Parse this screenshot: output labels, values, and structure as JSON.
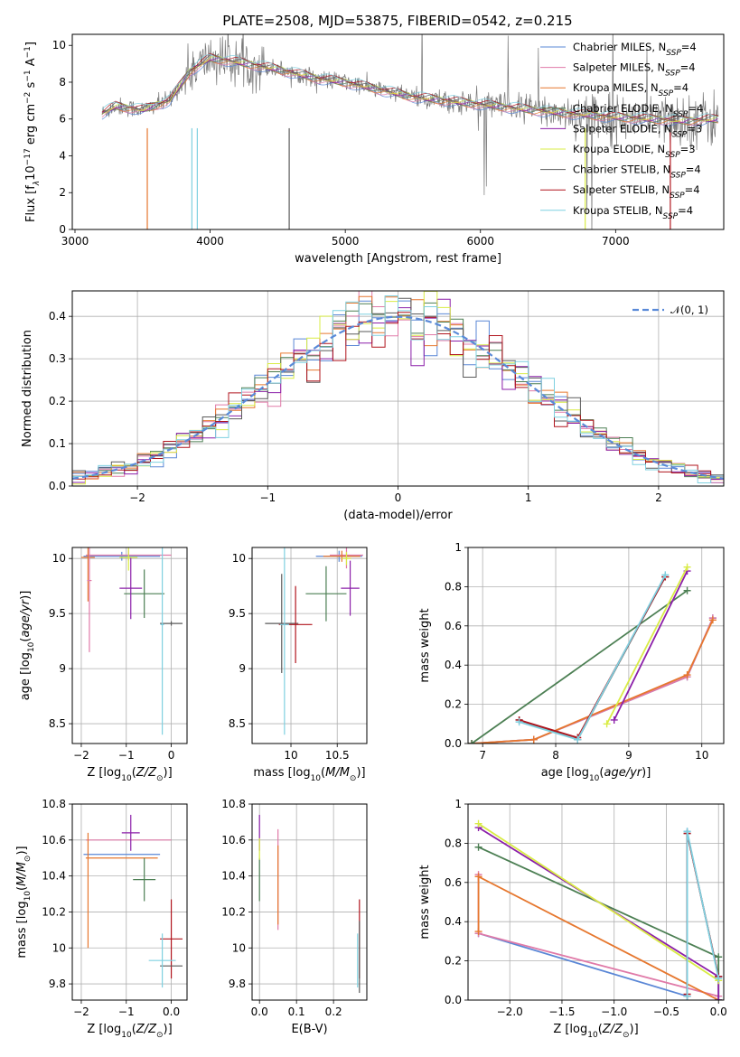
{
  "title": "PLATE=2508, MJD=53875, FIBERID=0542, z=0.215",
  "colors": {
    "Chabrier MILES": "#5a87d6",
    "Salpeter MILES": "#e07aa8",
    "Kroupa MILES": "#e6772e",
    "Chabrier ELODIE": "#4c7f53",
    "Salpeter ELODIE": "#8b1fa9",
    "Kroupa ELODIE": "#d9ec45",
    "Chabrier STELIB": "#5a5a5a",
    "Salpeter STELIB": "#b0141d",
    "Kroupa STELIB": "#7fd0e0",
    "normal": "#5a8ad8"
  },
  "legend": [
    {
      "prefix": "Chabrier MILES, N",
      "sub": "SSP",
      "suffix": "=4",
      "color_key": "Chabrier MILES"
    },
    {
      "prefix": "Salpeter MILES, N",
      "sub": "SSP",
      "suffix": "=4",
      "color_key": "Salpeter MILES"
    },
    {
      "prefix": "Kroupa MILES, N",
      "sub": "SSP",
      "suffix": "=4",
      "color_key": "Kroupa MILES"
    },
    {
      "prefix": "Chabrier ELODIE, N",
      "sub": "SSP",
      "suffix": "=4",
      "color_key": "Chabrier ELODIE"
    },
    {
      "prefix": "Salpeter ELODIE, N",
      "sub": "SSP",
      "suffix": "=3",
      "color_key": "Salpeter ELODIE"
    },
    {
      "prefix": "Kroupa ELODIE, N",
      "sub": "SSP",
      "suffix": "=3",
      "color_key": "Kroupa ELODIE"
    },
    {
      "prefix": "Chabrier STELIB, N",
      "sub": "SSP",
      "suffix": "=4",
      "color_key": "Chabrier STELIB"
    },
    {
      "prefix": "Salpeter STELIB, N",
      "sub": "SSP",
      "suffix": "=4",
      "color_key": "Salpeter STELIB"
    },
    {
      "prefix": "Kroupa STELIB, N",
      "sub": "SSP",
      "suffix": "=4",
      "color_key": "Kroupa STELIB"
    }
  ],
  "chart_data": [
    {
      "id": "spectrum",
      "type": "line",
      "xlabel": "wavelength [Angstrom, rest frame]",
      "ylabel_parts": [
        "Flux [f",
        "λ",
        "10",
        "−17",
        " erg cm",
        "−2",
        " s",
        "−1",
        " A",
        "−1",
        "]"
      ],
      "xlim": [
        2980,
        7800
      ],
      "ylim": [
        0,
        10.6
      ],
      "xticks": [
        3000,
        4000,
        5000,
        6000,
        7000
      ],
      "yticks": [
        0,
        2,
        4,
        6,
        8,
        10
      ],
      "continuum": [
        [
          3200,
          6.3
        ],
        [
          3300,
          6.7
        ],
        [
          3500,
          6.5
        ],
        [
          3700,
          7.0
        ],
        [
          3850,
          8.6
        ],
        [
          4000,
          9.3
        ],
        [
          4200,
          9.1
        ],
        [
          4500,
          8.7
        ],
        [
          4800,
          8.2
        ],
        [
          5000,
          8.0
        ],
        [
          5500,
          7.2
        ],
        [
          6000,
          6.8
        ],
        [
          6500,
          6.4
        ],
        [
          7000,
          6.1
        ],
        [
          7500,
          5.9
        ],
        [
          7760,
          6.0
        ]
      ]
    },
    {
      "id": "residuals",
      "type": "histogram",
      "xlabel": "(data-model)/error",
      "ylabel": "Normed distribution",
      "xlim": [
        -2.5,
        2.5
      ],
      "ylim": [
        0,
        0.46
      ],
      "xticks": [
        -2,
        -1,
        0,
        1,
        2
      ],
      "yticks": [
        0.0,
        0.1,
        0.2,
        0.3,
        0.4
      ],
      "legend_label": "𝒩(0, 1)",
      "bin_width": 0.1
    },
    {
      "id": "age_vs_Z",
      "type": "errorbar",
      "xlabel_parts": [
        "Z [log",
        "10",
        "(",
        "Z/Z",
        "⊙",
        ")]"
      ],
      "ylabel_parts": [
        "age  [log",
        "10",
        "(",
        "age/yr",
        ")]"
      ],
      "xlim": [
        -2.2,
        0.35
      ],
      "ylim": [
        8.32,
        10.1
      ],
      "xticks": [
        -2,
        -1,
        0
      ],
      "yticks": [
        8.5,
        9.0,
        9.5,
        10.0
      ],
      "points": [
        {
          "series": "Chabrier MILES",
          "x": -1.1,
          "y": 10.02,
          "xerr": 0.85,
          "yerr": 0.04
        },
        {
          "series": "Salpeter MILES",
          "x": -0.95,
          "y": 10.03,
          "xerr": 0.95,
          "yerr": 0.05
        },
        {
          "series": "Kroupa MILES",
          "x": -1.85,
          "y": 10.01,
          "xerr": 0.15,
          "yerr": 0.4
        },
        {
          "series": "Salpeter MILES",
          "x": -1.82,
          "y": 9.8,
          "xerr": 0.05,
          "yerr": 0.65
        },
        {
          "series": "Chabrier ELODIE",
          "x": -0.6,
          "y": 9.68,
          "xerr": 0.45,
          "yerr": 0.22
        },
        {
          "series": "Salpeter ELODIE",
          "x": -0.9,
          "y": 9.73,
          "xerr": 0.25,
          "yerr": 0.28
        },
        {
          "series": "Kroupa ELODIE",
          "x": -0.95,
          "y": 10.01,
          "xerr": 0.2,
          "yerr": 0.12
        },
        {
          "series": "Chabrier STELIB",
          "x": 0.0,
          "y": 9.41,
          "xerr": 0.25,
          "yerr": 0.02
        },
        {
          "series": "Kroupa STELIB",
          "x": -0.2,
          "y": 9.4,
          "xerr": 0.04,
          "yerr": 1.0
        }
      ]
    },
    {
      "id": "age_vs_mass",
      "type": "errorbar",
      "xlabel_parts": [
        "mass [log",
        "10",
        "(",
        "M/M",
        "⊙",
        ")]"
      ],
      "ylabel": "",
      "xlim": [
        9.58,
        10.82
      ],
      "ylim": [
        8.32,
        10.1
      ],
      "xticks": [
        10.0,
        10.5
      ],
      "yticks": [
        8.5,
        9.0,
        9.5,
        10.0
      ],
      "points": [
        {
          "series": "Chabrier MILES",
          "x": 10.52,
          "y": 10.02,
          "xerr": 0.25,
          "yerr": 0.05
        },
        {
          "series": "Salpeter MILES",
          "x": 10.6,
          "y": 10.03,
          "xerr": 0.18,
          "yerr": 0.12
        },
        {
          "series": "Kroupa MILES",
          "x": 10.55,
          "y": 10.02,
          "xerr": 0.2,
          "yerr": 0.05
        },
        {
          "series": "Chabrier ELODIE",
          "x": 10.38,
          "y": 9.68,
          "xerr": 0.22,
          "yerr": 0.25
        },
        {
          "series": "Salpeter ELODIE",
          "x": 10.64,
          "y": 9.73,
          "xerr": 0.1,
          "yerr": 0.25
        },
        {
          "series": "Kroupa ELODIE",
          "x": 10.6,
          "y": 10.0,
          "xerr": 0.05,
          "yerr": 0.06
        },
        {
          "series": "Chabrier STELIB",
          "x": 9.9,
          "y": 9.41,
          "xerr": 0.18,
          "yerr": 0.45
        },
        {
          "series": "Salpeter STELIB",
          "x": 10.05,
          "y": 9.4,
          "xerr": 0.18,
          "yerr": 0.35
        },
        {
          "series": "Kroupa STELIB",
          "x": 9.93,
          "y": 9.4,
          "xerr": 0.05,
          "yerr": 1.0
        }
      ]
    },
    {
      "id": "weight_vs_age",
      "type": "line",
      "xlabel_parts": [
        "age  [log",
        "10",
        "(",
        "age/yr",
        ")]"
      ],
      "ylabel": "mass weight",
      "xlim": [
        6.8,
        10.3
      ],
      "ylim": [
        0,
        1.0
      ],
      "xticks": [
        7,
        8,
        9,
        10
      ],
      "yticks": [
        0.0,
        0.2,
        0.4,
        0.6,
        0.8,
        1.0
      ],
      "series": [
        {
          "name": "Chabrier MILES",
          "x": [
            6.85,
            7.7,
            9.8,
            10.15
          ],
          "y": [
            0.0,
            0.02,
            0.34,
            0.64
          ]
        },
        {
          "name": "Salpeter MILES",
          "x": [
            6.85,
            7.7,
            9.8,
            10.15
          ],
          "y": [
            0.0,
            0.02,
            0.34,
            0.64
          ]
        },
        {
          "name": "Kroupa MILES",
          "x": [
            6.85,
            7.7,
            9.8,
            10.15
          ],
          "y": [
            0.0,
            0.02,
            0.35,
            0.63
          ]
        },
        {
          "name": "Chabrier ELODIE",
          "x": [
            6.85,
            9.8
          ],
          "y": [
            0.0,
            0.78
          ]
        },
        {
          "name": "Salpeter ELODIE",
          "x": [
            8.8,
            9.8
          ],
          "y": [
            0.12,
            0.88
          ]
        },
        {
          "name": "Kroupa ELODIE",
          "x": [
            8.7,
            9.8
          ],
          "y": [
            0.1,
            0.9
          ]
        },
        {
          "name": "Chabrier STELIB",
          "x": [
            7.5,
            8.3,
            9.5
          ],
          "y": [
            0.12,
            0.02,
            0.85
          ]
        },
        {
          "name": "Salpeter STELIB",
          "x": [
            7.5,
            8.3,
            9.5
          ],
          "y": [
            0.12,
            0.03,
            0.85
          ]
        },
        {
          "name": "Kroupa STELIB",
          "x": [
            7.5,
            8.3,
            9.5
          ],
          "y": [
            0.11,
            0.02,
            0.86
          ]
        }
      ]
    },
    {
      "id": "mass_vs_Z",
      "type": "errorbar",
      "xlabel_parts": [
        "Z [log",
        "10",
        "(",
        "Z/Z",
        "⊙",
        ")]"
      ],
      "ylabel_parts": [
        "mass [log",
        "10",
        "(",
        "M/M",
        "⊙",
        ")]"
      ],
      "xlim": [
        -2.2,
        0.35
      ],
      "ylim": [
        9.71,
        10.8
      ],
      "xticks": [
        -2,
        -1,
        0
      ],
      "yticks": [
        9.8,
        10.0,
        10.2,
        10.4,
        10.6,
        10.8
      ],
      "points": [
        {
          "series": "Chabrier MILES",
          "x": -1.1,
          "y": 10.52,
          "xerr": 0.85,
          "yerr": 0.0
        },
        {
          "series": "Salpeter MILES",
          "x": -0.95,
          "y": 10.6,
          "xerr": 0.95,
          "yerr": 0.0
        },
        {
          "series": "Kroupa MILES",
          "x": -1.1,
          "y": 10.5,
          "xerr": 0.8,
          "yerr": 0.0
        },
        {
          "series": "Kroupa MILES",
          "x": -1.85,
          "y": 10.32,
          "xerr": 0.0,
          "yerr": 0.32
        },
        {
          "series": "Chabrier ELODIE",
          "x": -0.6,
          "y": 10.38,
          "xerr": 0.25,
          "yerr": 0.12
        },
        {
          "series": "Salpeter ELODIE",
          "x": -0.9,
          "y": 10.64,
          "xerr": 0.2,
          "yerr": 0.1
        },
        {
          "series": "Salpeter STELIB",
          "x": 0.0,
          "y": 10.05,
          "xerr": 0.25,
          "yerr": 0.22
        },
        {
          "series": "Chabrier STELIB",
          "x": 0.0,
          "y": 9.9,
          "xerr": 0.25,
          "yerr": 0.0
        },
        {
          "series": "Kroupa STELIB",
          "x": -0.2,
          "y": 9.93,
          "xerr": 0.3,
          "yerr": 0.15
        }
      ]
    },
    {
      "id": "mass_vs_ebv",
      "type": "errorbar",
      "xlabel": "E(B-V)",
      "ylabel": "",
      "xlim": [
        -0.02,
        0.29
      ],
      "ylim": [
        9.71,
        10.8
      ],
      "xticks": [
        0.0,
        0.1,
        0.2
      ],
      "yticks": [
        9.8,
        10.0,
        10.2,
        10.4,
        10.6,
        10.8
      ],
      "points": [
        {
          "series": "Salpeter ELODIE",
          "x": 0.0,
          "y": 10.64,
          "xerr": 0.0,
          "yerr": 0.1
        },
        {
          "series": "Chabrier ELODIE",
          "x": 0.0,
          "y": 10.38,
          "xerr": 0.0,
          "yerr": 0.12
        },
        {
          "series": "Kroupa ELODIE",
          "x": 0.0,
          "y": 10.55,
          "xerr": 0.0,
          "yerr": 0.06
        },
        {
          "series": "Salpeter MILES",
          "x": 0.05,
          "y": 10.38,
          "xerr": 0.0,
          "yerr": 0.28
        },
        {
          "series": "Kroupa MILES",
          "x": 0.05,
          "y": 10.35,
          "xerr": 0.0,
          "yerr": 0.22
        },
        {
          "series": "Salpeter STELIB",
          "x": 0.27,
          "y": 10.05,
          "xerr": 0.0,
          "yerr": 0.22
        },
        {
          "series": "Chabrier STELIB",
          "x": 0.27,
          "y": 9.95,
          "xerr": 0.0,
          "yerr": 0.2
        },
        {
          "series": "Kroupa STELIB",
          "x": 0.265,
          "y": 9.93,
          "xerr": 0.0,
          "yerr": 0.15
        }
      ]
    },
    {
      "id": "weight_vs_Z",
      "type": "line",
      "xlabel_parts": [
        "Z [log",
        "10",
        "(",
        "Z/Z",
        "⊙",
        ")]"
      ],
      "ylabel": "mass weight",
      "xlim": [
        -2.4,
        0.05
      ],
      "ylim": [
        0,
        1.0
      ],
      "xticks": [
        -2.0,
        -1.5,
        -1.0,
        -0.5,
        0.0
      ],
      "xticklabels": [
        "−2.0",
        "−1.5",
        "−1.0",
        "−0.5",
        "0.0"
      ],
      "yticks": [
        0.0,
        0.2,
        0.4,
        0.6,
        0.8,
        1.0
      ],
      "series": [
        {
          "name": "Chabrier MILES",
          "x": [
            -2.3,
            -0.3,
            -0.3
          ],
          "y": [
            0.34,
            0.02,
            0.86
          ]
        },
        {
          "name": "Salpeter MILES",
          "x": [
            -2.3,
            -2.3,
            0.0
          ],
          "y": [
            0.64,
            0.34,
            0.02
          ]
        },
        {
          "name": "Kroupa MILES",
          "x": [
            -2.3,
            -2.3,
            0.0
          ],
          "y": [
            0.35,
            0.63,
            0.0
          ]
        },
        {
          "name": "Chabrier ELODIE",
          "x": [
            -2.3,
            0.0,
            0.0
          ],
          "y": [
            0.78,
            0.22,
            0.0
          ]
        },
        {
          "name": "Salpeter ELODIE",
          "x": [
            -2.3,
            0.0,
            0.0
          ],
          "y": [
            0.88,
            0.12,
            0.0
          ]
        },
        {
          "name": "Kroupa ELODIE",
          "x": [
            -2.3,
            0.0
          ],
          "y": [
            0.9,
            0.1
          ]
        },
        {
          "name": "Chabrier STELIB",
          "x": [
            -0.3,
            -0.3,
            0.0
          ],
          "y": [
            0.02,
            0.85,
            0.12
          ]
        },
        {
          "name": "Salpeter STELIB",
          "x": [
            -0.3,
            -0.3,
            0.0
          ],
          "y": [
            0.03,
            0.85,
            0.12
          ]
        },
        {
          "name": "Kroupa STELIB",
          "x": [
            -0.3,
            -0.3,
            0.0
          ],
          "y": [
            0.02,
            0.86,
            0.11
          ]
        }
      ]
    }
  ]
}
